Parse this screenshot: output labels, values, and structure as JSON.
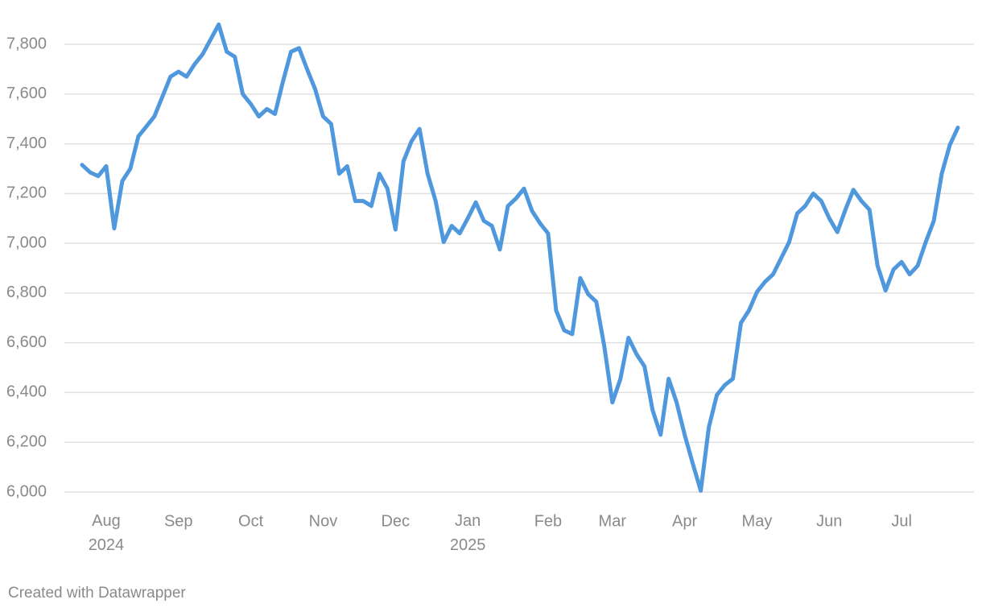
{
  "chart_data": {
    "type": "line",
    "categories": [
      null,
      null,
      null,
      "Aug 2024",
      null,
      null,
      null,
      null,
      null,
      null,
      null,
      null,
      "Sep",
      null,
      null,
      null,
      null,
      null,
      null,
      null,
      null,
      "Oct",
      null,
      null,
      null,
      null,
      null,
      null,
      null,
      null,
      "Nov",
      null,
      null,
      null,
      null,
      null,
      null,
      null,
      null,
      "Dec",
      null,
      null,
      null,
      null,
      null,
      null,
      null,
      null,
      "Jan 2025",
      null,
      null,
      null,
      null,
      null,
      null,
      null,
      null,
      null,
      "Feb",
      null,
      null,
      null,
      null,
      null,
      null,
      null,
      "Mar",
      null,
      null,
      null,
      null,
      null,
      null,
      null,
      null,
      "Apr",
      null,
      null,
      null,
      null,
      null,
      null,
      null,
      null,
      "May",
      null,
      null,
      null,
      null,
      null,
      null,
      null,
      null,
      "Jun",
      null,
      null,
      null,
      null,
      null,
      null,
      null,
      null,
      "Jul",
      null,
      null,
      null,
      null,
      null,
      null,
      null
    ],
    "values": [
      7315,
      7285,
      7270,
      7310,
      7060,
      7250,
      7300,
      7430,
      7470,
      7510,
      7590,
      7670,
      7690,
      7670,
      7720,
      7760,
      7820,
      7880,
      7770,
      7750,
      7600,
      7560,
      7510,
      7540,
      7520,
      7650,
      7770,
      7785,
      7700,
      7620,
      7510,
      7480,
      7280,
      7310,
      7170,
      7170,
      7150,
      7280,
      7220,
      7055,
      7330,
      7410,
      7460,
      7280,
      7170,
      7005,
      7070,
      7040,
      7100,
      7165,
      7090,
      7070,
      6975,
      7150,
      7180,
      7220,
      7130,
      7080,
      7040,
      6730,
      6650,
      6635,
      6860,
      6795,
      6765,
      6585,
      6360,
      6455,
      6620,
      6555,
      6505,
      6330,
      6230,
      6455,
      6360,
      6230,
      6115,
      6005,
      6260,
      6390,
      6430,
      6455,
      6680,
      6730,
      6805,
      6845,
      6875,
      6940,
      7005,
      7120,
      7150,
      7200,
      7170,
      7100,
      7045,
      7135,
      7215,
      7170,
      7135,
      6910,
      6810,
      6895,
      6925,
      6875,
      6910,
      7005,
      7090,
      7280,
      7395,
      7465
    ],
    "color": "#4f98dd",
    "ylim": [
      5940,
      7920
    ],
    "yticks": [
      {
        "value": 6000,
        "label": "6,000"
      },
      {
        "value": 6200,
        "label": "6,200"
      },
      {
        "value": 6400,
        "label": "6,400"
      },
      {
        "value": 6600,
        "label": "6,600"
      },
      {
        "value": 6800,
        "label": "6,800"
      },
      {
        "value": 7000,
        "label": "7,000"
      },
      {
        "value": 7200,
        "label": "7,200"
      },
      {
        "value": 7400,
        "label": "7,400"
      },
      {
        "value": 7600,
        "label": "7,600"
      },
      {
        "value": 7800,
        "label": "7,800"
      }
    ],
    "grid": true,
    "footer": "Created with Datawrapper"
  }
}
